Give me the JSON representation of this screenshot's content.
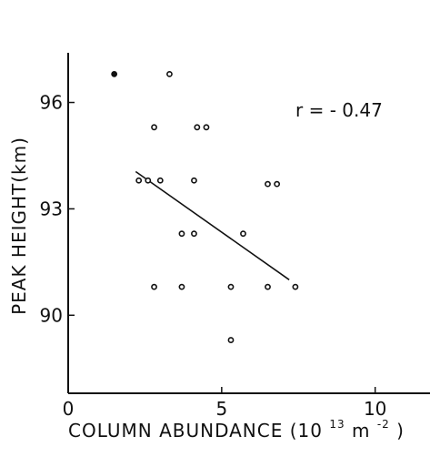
{
  "chart_data": {
    "type": "scatter",
    "xlabel": "COLUMN ABUNDANCE (10",
    "xlabel_exponent": "13",
    "xlabel_unit": "m",
    "xlabel_unit_exponent": "-2",
    "xlabel_close": ")",
    "ylabel": "PEAK HEIGHT(km)",
    "annotation": "r = - 0.47",
    "xlim": [
      0,
      13
    ],
    "ylim": [
      87.8,
      97.4
    ],
    "x_ticks": [
      0,
      5,
      10
    ],
    "y_ticks": [
      90,
      93,
      96
    ],
    "x_tick_labels": [
      "0",
      "5",
      "10"
    ],
    "y_tick_labels": [
      "90",
      "93",
      "96"
    ],
    "grid": false,
    "points": [
      {
        "x": 1.5,
        "y": 96.8,
        "filled": true
      },
      {
        "x": 3.3,
        "y": 96.8,
        "filled": false
      },
      {
        "x": 2.8,
        "y": 95.3,
        "filled": false
      },
      {
        "x": 4.2,
        "y": 95.3,
        "filled": false
      },
      {
        "x": 4.5,
        "y": 95.3,
        "filled": false
      },
      {
        "x": 2.3,
        "y": 93.8,
        "filled": false
      },
      {
        "x": 2.6,
        "y": 93.8,
        "filled": false
      },
      {
        "x": 3.0,
        "y": 93.8,
        "filled": false
      },
      {
        "x": 4.1,
        "y": 93.8,
        "filled": false
      },
      {
        "x": 6.5,
        "y": 93.7,
        "filled": false
      },
      {
        "x": 6.8,
        "y": 93.7,
        "filled": false
      },
      {
        "x": 3.7,
        "y": 92.3,
        "filled": false
      },
      {
        "x": 4.1,
        "y": 92.3,
        "filled": false
      },
      {
        "x": 5.7,
        "y": 92.3,
        "filled": false
      },
      {
        "x": 2.8,
        "y": 90.8,
        "filled": false
      },
      {
        "x": 3.7,
        "y": 90.8,
        "filled": false
      },
      {
        "x": 5.3,
        "y": 90.8,
        "filled": false
      },
      {
        "x": 6.5,
        "y": 90.8,
        "filled": false
      },
      {
        "x": 7.4,
        "y": 90.8,
        "filled": false
      },
      {
        "x": 5.3,
        "y": 89.3,
        "filled": false
      }
    ],
    "regression_line": {
      "x": [
        2.2,
        7.2
      ],
      "y": [
        94.05,
        91.0
      ]
    }
  }
}
